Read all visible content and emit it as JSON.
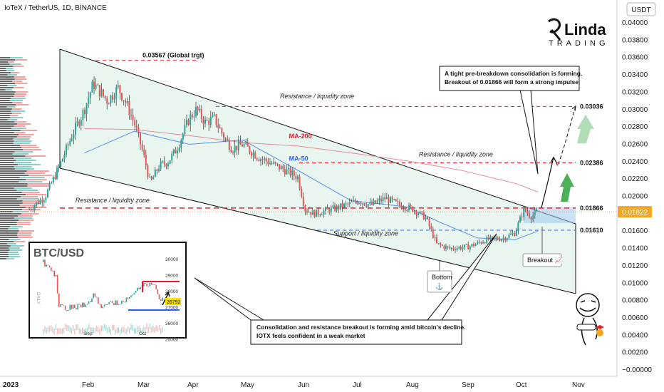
{
  "header": {
    "symbol_line": "IoTeX / TetherUS, 1D, BINANCE",
    "currency": "USDT"
  },
  "logo": {
    "line1": "Linda",
    "line2": "TRADING"
  },
  "chart_data": {
    "type": "candlestick",
    "y_axis": {
      "ylim": [
        -0.0002,
        0.042
      ],
      "ticks": [
        0.04,
        0.038,
        0.036,
        0.034,
        0.032,
        0.03,
        0.028,
        0.026,
        0.024,
        0.022,
        0.02,
        0.018,
        0.016,
        0.014,
        0.012,
        0.01,
        0.008,
        0.006,
        0.004,
        0.002,
        0
      ],
      "tick_labels": [
        "0.04000",
        "0.03800",
        "0.03600",
        "0.03400",
        "0.03200",
        "0.03000",
        "0.02800",
        "0.02600",
        "0.02400",
        "0.02200",
        "0.02000",
        "0.01800",
        "0.01600",
        "0.01400",
        "0.01200",
        "0.01000",
        "0.00800",
        "0.00600",
        "0.00400",
        "0.00200",
        "−0.00000"
      ]
    },
    "x_axis": {
      "tick_labels": [
        "2023",
        "Feb",
        "Mar",
        "Apr",
        "May",
        "Jun",
        "Jul",
        "Aug",
        "Sep",
        "Oct",
        "Nov"
      ]
    },
    "last_price": {
      "value": 0.01822,
      "label": "0.01822",
      "color": "#f5a623"
    },
    "levels": [
      {
        "value": 0.03567,
        "label": "0.03567 (Global trgt)",
        "color": "#e8192c"
      },
      {
        "value": 0.03036,
        "label": "0.03036",
        "color": "#e8192c"
      },
      {
        "value": 0.02386,
        "label": "0.02386",
        "color": "#e8192c"
      },
      {
        "value": 0.01866,
        "label": "0.01866",
        "color": "#e8192c"
      },
      {
        "value": 0.0161,
        "label": "0.01610",
        "color": "#2962ff"
      }
    ],
    "zone_labels": [
      {
        "text": "Resistance / liquidity zone",
        "date": "2023-06-15",
        "value": 0.0313
      },
      {
        "text": "Resistance / liquidity zone",
        "date": "2023-09-01",
        "value": 0.0246
      },
      {
        "text": "Resistance / liquidity zone",
        "date": "2023-02-20",
        "value": 0.0193
      },
      {
        "text": "Support / liquidity zone",
        "date": "2023-07-15",
        "value": 0.0155
      }
    ],
    "ma_labels": [
      {
        "text": "MA-200",
        "color": "#e8192c",
        "date": "2023-05-15",
        "value": 0.0267
      },
      {
        "text": "MA-50",
        "color": "#2962ff",
        "date": "2023-05-15",
        "value": 0.0241
      }
    ],
    "annotations": [
      {
        "name": "breakout-label",
        "text": "Breakout 📈"
      },
      {
        "name": "bottom-label",
        "text": "Bottom"
      }
    ],
    "callouts": [
      {
        "name": "callout-top",
        "lines": [
          "A tight pre-breakdown consolidation is forming.",
          "Breakout of 0.01866 will form a strong impulse"
        ]
      },
      {
        "name": "callout-bottom",
        "lines": [
          "Consolidation and resistance breakout is forming amid bitcoin's decline.",
          "IOTX feels confident in a weak market"
        ]
      }
    ],
    "close_path": [
      [
        "2023-01-01",
        0.0185
      ],
      [
        "2023-01-10",
        0.02
      ],
      [
        "2023-01-18",
        0.0235
      ],
      [
        "2023-01-25",
        0.027
      ],
      [
        "2023-02-01",
        0.03
      ],
      [
        "2023-02-06",
        0.033
      ],
      [
        "2023-02-10",
        0.032
      ],
      [
        "2023-02-14",
        0.031
      ],
      [
        "2023-02-20",
        0.0325
      ],
      [
        "2023-02-25",
        0.0305
      ],
      [
        "2023-03-01",
        0.0285
      ],
      [
        "2023-03-06",
        0.025
      ],
      [
        "2023-03-10",
        0.0215
      ],
      [
        "2023-03-15",
        0.0235
      ],
      [
        "2023-03-20",
        0.024
      ],
      [
        "2023-03-25",
        0.0255
      ],
      [
        "2023-04-01",
        0.029
      ],
      [
        "2023-04-05",
        0.03
      ],
      [
        "2023-04-10",
        0.0285
      ],
      [
        "2023-04-15",
        0.029
      ],
      [
        "2023-04-20",
        0.027
      ],
      [
        "2023-04-25",
        0.0255
      ],
      [
        "2023-05-01",
        0.026
      ],
      [
        "2023-05-10",
        0.0245
      ],
      [
        "2023-05-20",
        0.0235
      ],
      [
        "2023-05-25",
        0.023
      ],
      [
        "2023-06-01",
        0.0222
      ],
      [
        "2023-06-05",
        0.0185
      ],
      [
        "2023-06-10",
        0.018
      ],
      [
        "2023-06-20",
        0.0185
      ],
      [
        "2023-06-28",
        0.019
      ],
      [
        "2023-07-05",
        0.0195
      ],
      [
        "2023-07-12",
        0.019
      ],
      [
        "2023-07-20",
        0.0198
      ],
      [
        "2023-07-28",
        0.019
      ],
      [
        "2023-08-05",
        0.0185
      ],
      [
        "2023-08-12",
        0.0175
      ],
      [
        "2023-08-18",
        0.0145
      ],
      [
        "2023-08-25",
        0.014
      ],
      [
        "2023-09-05",
        0.0142
      ],
      [
        "2023-09-15",
        0.015
      ],
      [
        "2023-09-25",
        0.0152
      ],
      [
        "2023-10-01",
        0.0158
      ],
      [
        "2023-10-06",
        0.0185
      ],
      [
        "2023-10-10",
        0.0177
      ],
      [
        "2023-10-14",
        0.0182
      ]
    ],
    "ma50_path": [
      [
        "2023-02-01",
        0.025
      ],
      [
        "2023-03-01",
        0.0275
      ],
      [
        "2023-04-01",
        0.026
      ],
      [
        "2023-05-01",
        0.0265
      ],
      [
        "2023-06-01",
        0.023
      ],
      [
        "2023-07-01",
        0.0195
      ],
      [
        "2023-08-01",
        0.0188
      ],
      [
        "2023-08-20",
        0.017
      ],
      [
        "2023-09-10",
        0.0152
      ],
      [
        "2023-10-01",
        0.015
      ],
      [
        "2023-10-14",
        0.016
      ]
    ],
    "ma200_path": [
      [
        "2023-02-01",
        0.0278
      ],
      [
        "2023-03-01",
        0.0277
      ],
      [
        "2023-04-01",
        0.027
      ],
      [
        "2023-05-01",
        0.0262
      ],
      [
        "2023-06-01",
        0.0258
      ],
      [
        "2023-07-01",
        0.025
      ],
      [
        "2023-08-01",
        0.0241
      ],
      [
        "2023-09-01",
        0.023
      ],
      [
        "2023-10-01",
        0.0215
      ],
      [
        "2023-10-14",
        0.0205
      ]
    ],
    "forecast_path": [
      [
        "2023-10-14",
        0.0187
      ],
      [
        "2023-10-18",
        0.021
      ],
      [
        "2023-10-22",
        0.0245
      ],
      [
        "2023-10-25",
        0.0235
      ],
      [
        "2023-10-29",
        0.0258
      ],
      [
        "2023-11-04",
        0.0304
      ]
    ],
    "inset": {
      "title": "BTC/USD",
      "y_labels": [
        "30000",
        "29000",
        "28000",
        "27000",
        "26000",
        "25000"
      ],
      "x_labels": [
        "Sep",
        "Oct"
      ],
      "price_badge": "26792",
      "vertical_caption": "DAILY"
    }
  }
}
